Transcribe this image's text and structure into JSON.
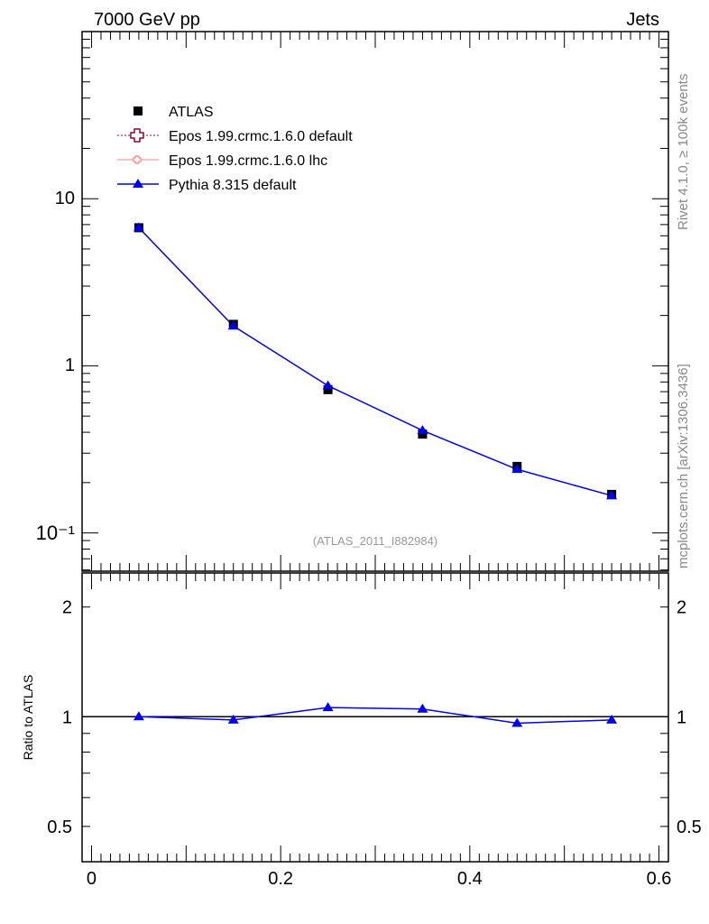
{
  "header": {
    "left": "7000 GeV pp",
    "right": "Jets"
  },
  "side_labels": {
    "rivet": "Rivet 4.1.0, ≥ 100k events",
    "mcplots": "mcplots.cern.ch [arXiv:1306.3436]"
  },
  "analysis_label": "(ATLAS_2011_I882984)",
  "chart_data": [
    {
      "type": "line",
      "panel": "main",
      "yscale": "log",
      "xlim": [
        -0.01,
        0.61
      ],
      "ylim": [
        0.059,
        100
      ],
      "x_ticks": [
        0,
        0.2,
        0.4,
        0.6
      ],
      "y_ticks": [
        {
          "v": 10,
          "label": "10"
        },
        {
          "v": 1,
          "label": "1"
        },
        {
          "v": 0.1,
          "label": "10⁻¹"
        }
      ],
      "legend_placement": "top-left",
      "series": [
        {
          "name": "ATLAS",
          "color": "#000000",
          "marker": "square",
          "x": [
            0.05,
            0.15,
            0.25,
            0.35,
            0.45,
            0.55
          ],
          "y": [
            6.7,
            1.77,
            0.72,
            0.39,
            0.25,
            0.17
          ]
        },
        {
          "name": "Epos 1.99.crmc.1.6.0 default",
          "color": "#8b0a3a",
          "marker": "open-cross",
          "line": "dotted",
          "x": [],
          "y": []
        },
        {
          "name": "Epos 1.99.crmc.1.6.0 lhc",
          "color": "#ff8080",
          "marker": "open-cross-small",
          "line": "solid",
          "x": [],
          "y": []
        },
        {
          "name": "Pythia 8.315 default",
          "color": "#0000ee",
          "marker": "triangle",
          "line": "solid",
          "x": [
            0.05,
            0.15,
            0.25,
            0.35,
            0.45,
            0.55
          ],
          "y": [
            6.7,
            1.73,
            0.76,
            0.41,
            0.24,
            0.167
          ]
        }
      ]
    },
    {
      "type": "line",
      "panel": "ratio",
      "yscale": "log",
      "ylabel": "Ratio to ATLAS",
      "xlim": [
        -0.01,
        0.61
      ],
      "ylim": [
        0.4,
        2.48
      ],
      "x_ticks": [
        {
          "v": 0,
          "label": "0"
        },
        {
          "v": 0.2,
          "label": "0.2"
        },
        {
          "v": 0.4,
          "label": "0.4"
        },
        {
          "v": 0.6,
          "label": "0.6"
        }
      ],
      "y_ticks": [
        {
          "v": 2,
          "label": "2"
        },
        {
          "v": 1,
          "label": "1"
        },
        {
          "v": 0.5,
          "label": "0.5"
        }
      ],
      "series": [
        {
          "name": "Pythia 8.315 default",
          "color": "#0000ee",
          "x": [
            0.05,
            0.15,
            0.25,
            0.35,
            0.45,
            0.55
          ],
          "y": [
            1.0,
            0.98,
            1.06,
            1.05,
            0.96,
            0.98
          ],
          "err": [
            0.01,
            0.01,
            0.02,
            0.02,
            0.015,
            0.01
          ]
        }
      ]
    }
  ]
}
